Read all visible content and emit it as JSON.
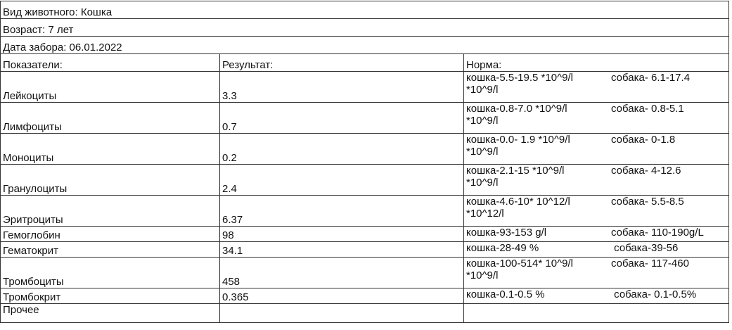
{
  "info": {
    "species": "Вид животного: Кошка",
    "age": "Возраст: 7 лет",
    "date": "Дата забора: 06.01.2022"
  },
  "headers": {
    "indicator": "Показатели:",
    "result": "Результат:",
    "norm": "Норма:"
  },
  "rows": [
    {
      "name": "Лейкоциты",
      "value": "3.3",
      "cat": "кошка-5.5-19.5 *10^9/l",
      "dog": "собака- 6.1-17.4",
      "cont": "*10^9/l"
    },
    {
      "name": "Лимфоциты",
      "value": "0.7",
      "cat": "кошка-0.8-7.0  *10^9/l",
      "dog": "собака- 0.8-5.1",
      "cont": "*10^9/l"
    },
    {
      "name": "Моноциты",
      "value": "0.2",
      "cat": "кошка-0.0- 1.9 *10^9/l",
      "dog": "собака- 0-1.8",
      "cont": "*10^9/l"
    },
    {
      "name": "Гранулоциты",
      "value": "2.4",
      "cat": "кошка-2.1-15 *10^9/l",
      "dog": "собака- 4-12.6",
      "cont": "*10^9/l"
    },
    {
      "name": "Эритроциты",
      "value": "6.37",
      "cat": "кошка-4.6-10* 10^12/l",
      "dog": "собака- 5.5-8.5",
      "cont": "*10^12/l"
    },
    {
      "name": "Гемоглобин",
      "value": "98",
      "cat": "кошка-93-153 g/l",
      "dog": "собака- 110-190g/L"
    },
    {
      "name": "Гематокрит",
      "value": "34.1",
      "cat": "кошка-28-49  %",
      "dog": " собака-39-56"
    },
    {
      "name": "Тромбоциты",
      "value": "458",
      "cat": "кошка-100-514* 10^9/l",
      "dog": "собака- 117-460",
      "cont": "*10^9/l"
    },
    {
      "name": "Тромбокрит",
      "value": "0.365",
      "cat": "кошка-0.1-0.5 %",
      "dog": " собака- 0.1-0.5%"
    },
    {
      "name": "Прочее",
      "value": "",
      "cat": "",
      "dog": ""
    }
  ]
}
